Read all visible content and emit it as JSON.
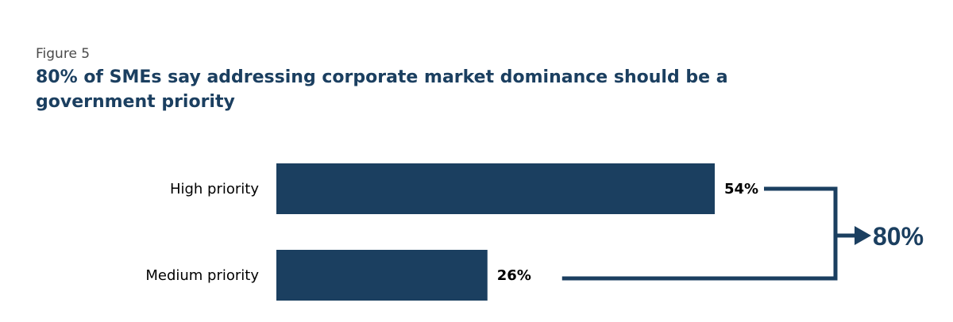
{
  "figure_label": "Figure 5",
  "title": "80% of SMEs say addressing corporate market dominance should be a government priority",
  "colors": {
    "bar": "#1b3f60",
    "connector": "#1b3f60",
    "title": "#1b3f60"
  },
  "chart_data": {
    "type": "bar",
    "orientation": "horizontal",
    "categories": [
      "High priority",
      "Medium priority"
    ],
    "values": [
      54,
      26
    ],
    "value_labels": [
      "54%",
      "26%"
    ],
    "unit": "%",
    "total": 80,
    "total_label": "80%",
    "xlim": [
      0,
      54
    ],
    "grid": false,
    "legend": "none"
  }
}
